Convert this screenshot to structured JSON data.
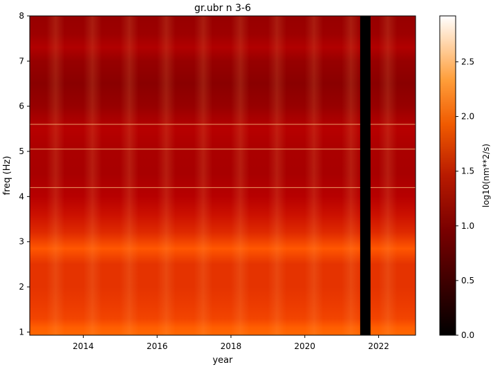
{
  "chart_data": {
    "type": "heatmap",
    "title": "gr.ubr n 3-6",
    "xlabel": "year",
    "ylabel": "freq (Hz)",
    "xlim": [
      2012.55,
      2023.0
    ],
    "ylim": [
      0.93,
      8.0
    ],
    "xticks": [
      2014,
      2016,
      2018,
      2020,
      2022
    ],
    "xtick_labels": [
      "2014",
      "2016",
      "2018",
      "2020",
      "2022"
    ],
    "yticks": [
      1,
      2,
      3,
      4,
      5,
      6,
      7,
      8
    ],
    "ytick_labels": [
      "1",
      "2",
      "3",
      "4",
      "5",
      "6",
      "7",
      "8"
    ],
    "colormap": "gist_heat",
    "colorbar": {
      "label": "log10(nm**2/s)",
      "range": [
        0.0,
        2.92
      ],
      "ticks": [
        0.0,
        0.5,
        1.0,
        1.5,
        2.0,
        2.5
      ],
      "tick_labels": [
        "0.0",
        "0.5",
        "1.0",
        "1.5",
        "2.0",
        "2.5"
      ]
    },
    "data_gap": {
      "x_start": 2021.5,
      "x_end": 2021.78,
      "value": 0.0
    },
    "frequency_profile": [
      {
        "freq": 0.93,
        "value": 2.05
      },
      {
        "freq": 1.1,
        "value": 2.0
      },
      {
        "freq": 1.3,
        "value": 1.85
      },
      {
        "freq": 1.6,
        "value": 1.8
      },
      {
        "freq": 2.0,
        "value": 1.75
      },
      {
        "freq": 2.5,
        "value": 1.75
      },
      {
        "freq": 2.85,
        "value": 1.95
      },
      {
        "freq": 3.2,
        "value": 1.7
      },
      {
        "freq": 3.6,
        "value": 1.55
      },
      {
        "freq": 4.0,
        "value": 1.4
      },
      {
        "freq": 4.5,
        "value": 1.28
      },
      {
        "freq": 5.0,
        "value": 1.3
      },
      {
        "freq": 5.5,
        "value": 1.4
      },
      {
        "freq": 6.0,
        "value": 1.15
      },
      {
        "freq": 6.5,
        "value": 1.05
      },
      {
        "freq": 7.0,
        "value": 1.15
      },
      {
        "freq": 7.3,
        "value": 1.35
      },
      {
        "freq": 7.6,
        "value": 1.2
      },
      {
        "freq": 8.0,
        "value": 1.15
      }
    ],
    "narrow_lines_hz": [
      4.2,
      5.05,
      5.6
    ]
  }
}
